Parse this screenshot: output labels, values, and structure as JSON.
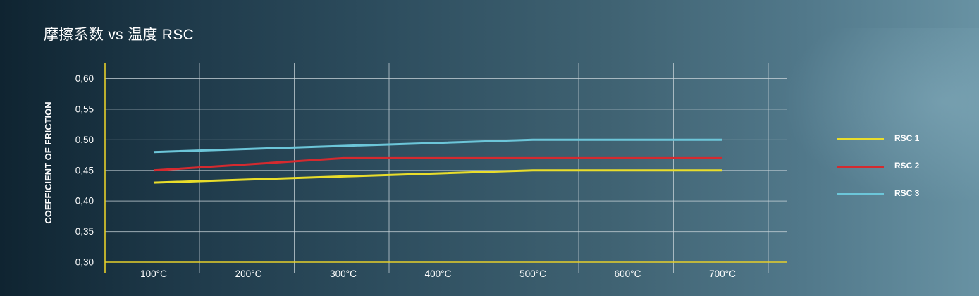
{
  "title": "摩擦系数 vs 温度 RSC",
  "chart_data": {
    "type": "line",
    "title": "摩擦系数 vs 温度 RSC",
    "xlabel": "",
    "ylabel": "COEFFICIENT OF FRICTION",
    "categories": [
      "100°C",
      "200°C",
      "300°C",
      "400°C",
      "500°C",
      "600°C",
      "700°C"
    ],
    "yticks": [
      "0,30",
      "0,35",
      "0,40",
      "0,45",
      "0,50",
      "0,55",
      "0,60"
    ],
    "ylim": [
      0.3,
      0.62
    ],
    "grid": true,
    "legend_position": "right",
    "series": [
      {
        "name": "RSC 1",
        "color": "#e9dd2b",
        "values": [
          0.43,
          0.435,
          0.44,
          0.445,
          0.45,
          0.45,
          0.45
        ]
      },
      {
        "name": "RSC 2",
        "color": "#d42a2f",
        "values": [
          0.45,
          0.46,
          0.47,
          0.47,
          0.47,
          0.47,
          0.47
        ]
      },
      {
        "name": "RSC 3",
        "color": "#6cc6d9",
        "values": [
          0.48,
          0.485,
          0.49,
          0.495,
          0.5,
          0.5,
          0.5
        ]
      }
    ],
    "axis_color": "#e6cf2a",
    "grid_color": "#c9d4da"
  }
}
